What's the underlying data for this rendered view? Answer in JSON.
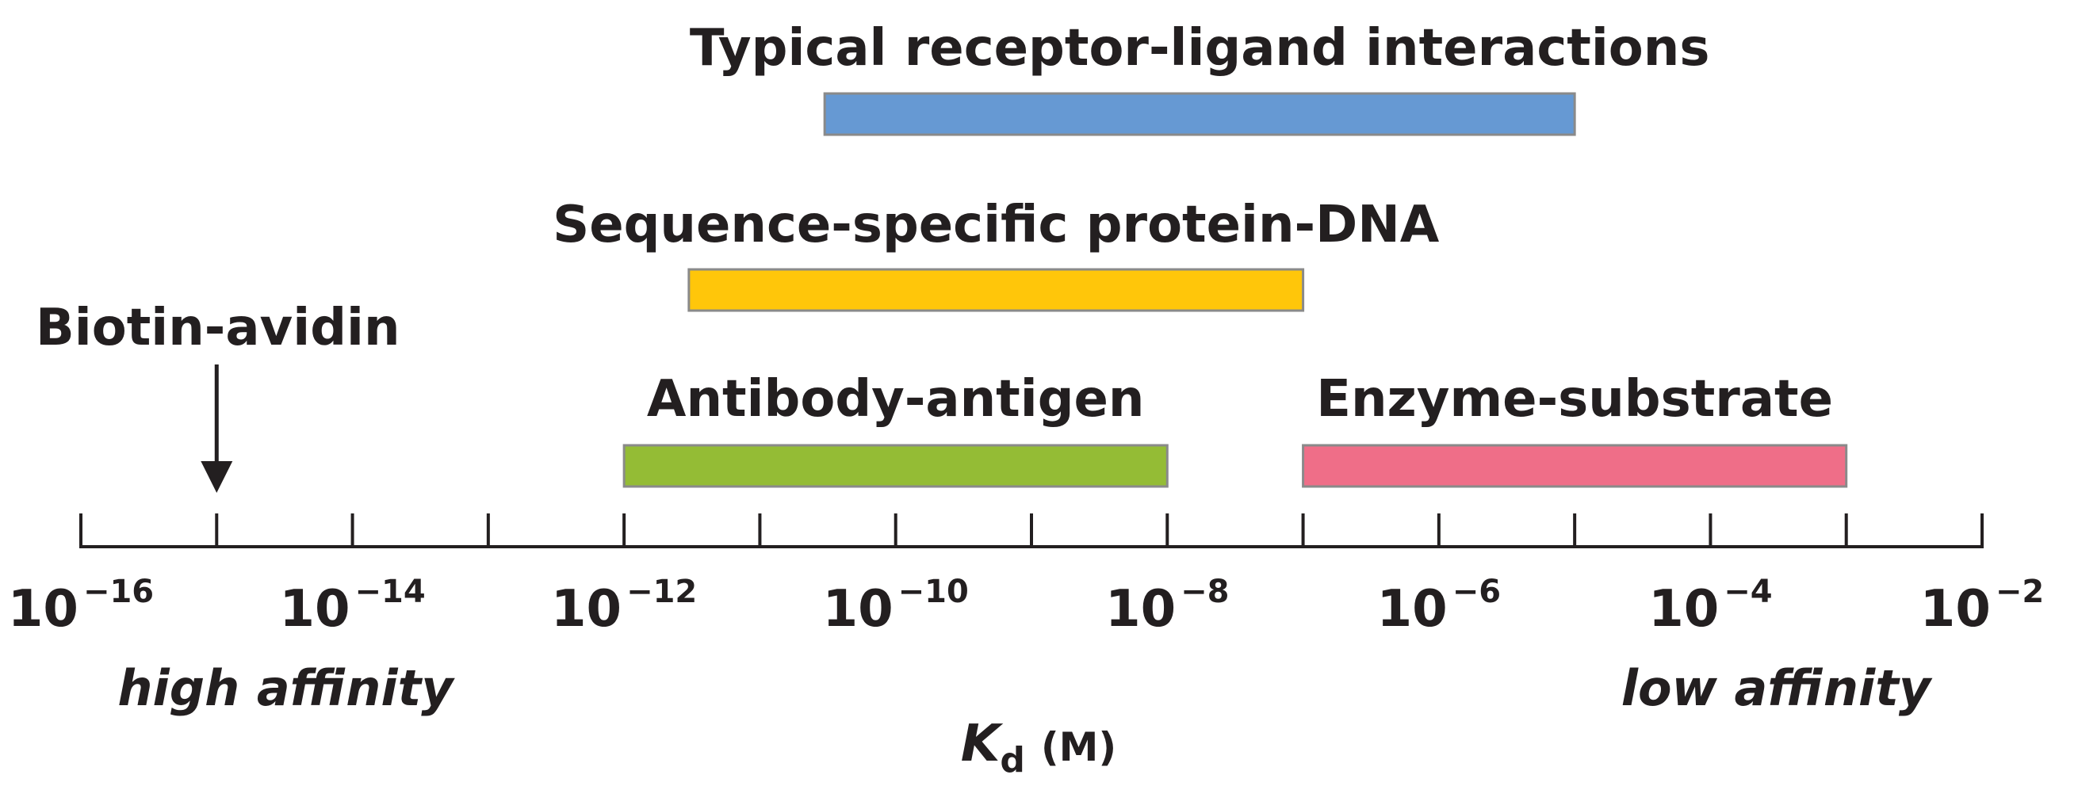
{
  "chart_data": {
    "type": "bar",
    "orientation": "horizontal-range",
    "x_scale": "log10",
    "xlim": [
      1e-16,
      0.01
    ],
    "x_ticks": [
      1e-16,
      1e-15,
      1e-14,
      1e-13,
      1e-12,
      1e-11,
      1e-10,
      1e-09,
      1e-08,
      1e-07,
      1e-06,
      1e-05,
      0.0001,
      0.001,
      0.01
    ],
    "x_tick_labels": [
      {
        "value": 1e-16,
        "base": "10",
        "exp": "−16"
      },
      {
        "value": 1e-14,
        "base": "10",
        "exp": "−14"
      },
      {
        "value": 1e-12,
        "base": "10",
        "exp": "−12"
      },
      {
        "value": 1e-10,
        "base": "10",
        "exp": "−10"
      },
      {
        "value": 1e-08,
        "base": "10",
        "exp": "−8"
      },
      {
        "value": 1e-06,
        "base": "10",
        "exp": "−6"
      },
      {
        "value": 0.0001,
        "base": "10",
        "exp": "−4"
      },
      {
        "value": 0.01,
        "base": "10",
        "exp": "−2"
      }
    ],
    "xlabel": {
      "symbol": "K",
      "subscript": "d",
      "unit": "(M)"
    },
    "axis_end_labels": {
      "left": "high affinity",
      "right": "low affinity"
    },
    "ranges": [
      {
        "label": "Typical receptor-ligand interactions",
        "low": 3e-11,
        "high": 1e-05,
        "color": "#6699d3"
      },
      {
        "label": "Sequence-specific protein-DNA",
        "low": 3e-12,
        "high": 1e-07,
        "color": "#ffc60a"
      },
      {
        "label": "Antibody-antigen",
        "low": 1e-12,
        "high": 1e-08,
        "color": "#94bc35"
      },
      {
        "label": "Enzyme-substrate",
        "low": 1e-07,
        "high": 0.001,
        "color": "#ef6e88"
      }
    ],
    "point_annotation": {
      "label": "Biotin-avidin",
      "value": 1e-15
    },
    "colors": {
      "ink": "#231f20",
      "bar_border": "#8a8a8a"
    }
  }
}
